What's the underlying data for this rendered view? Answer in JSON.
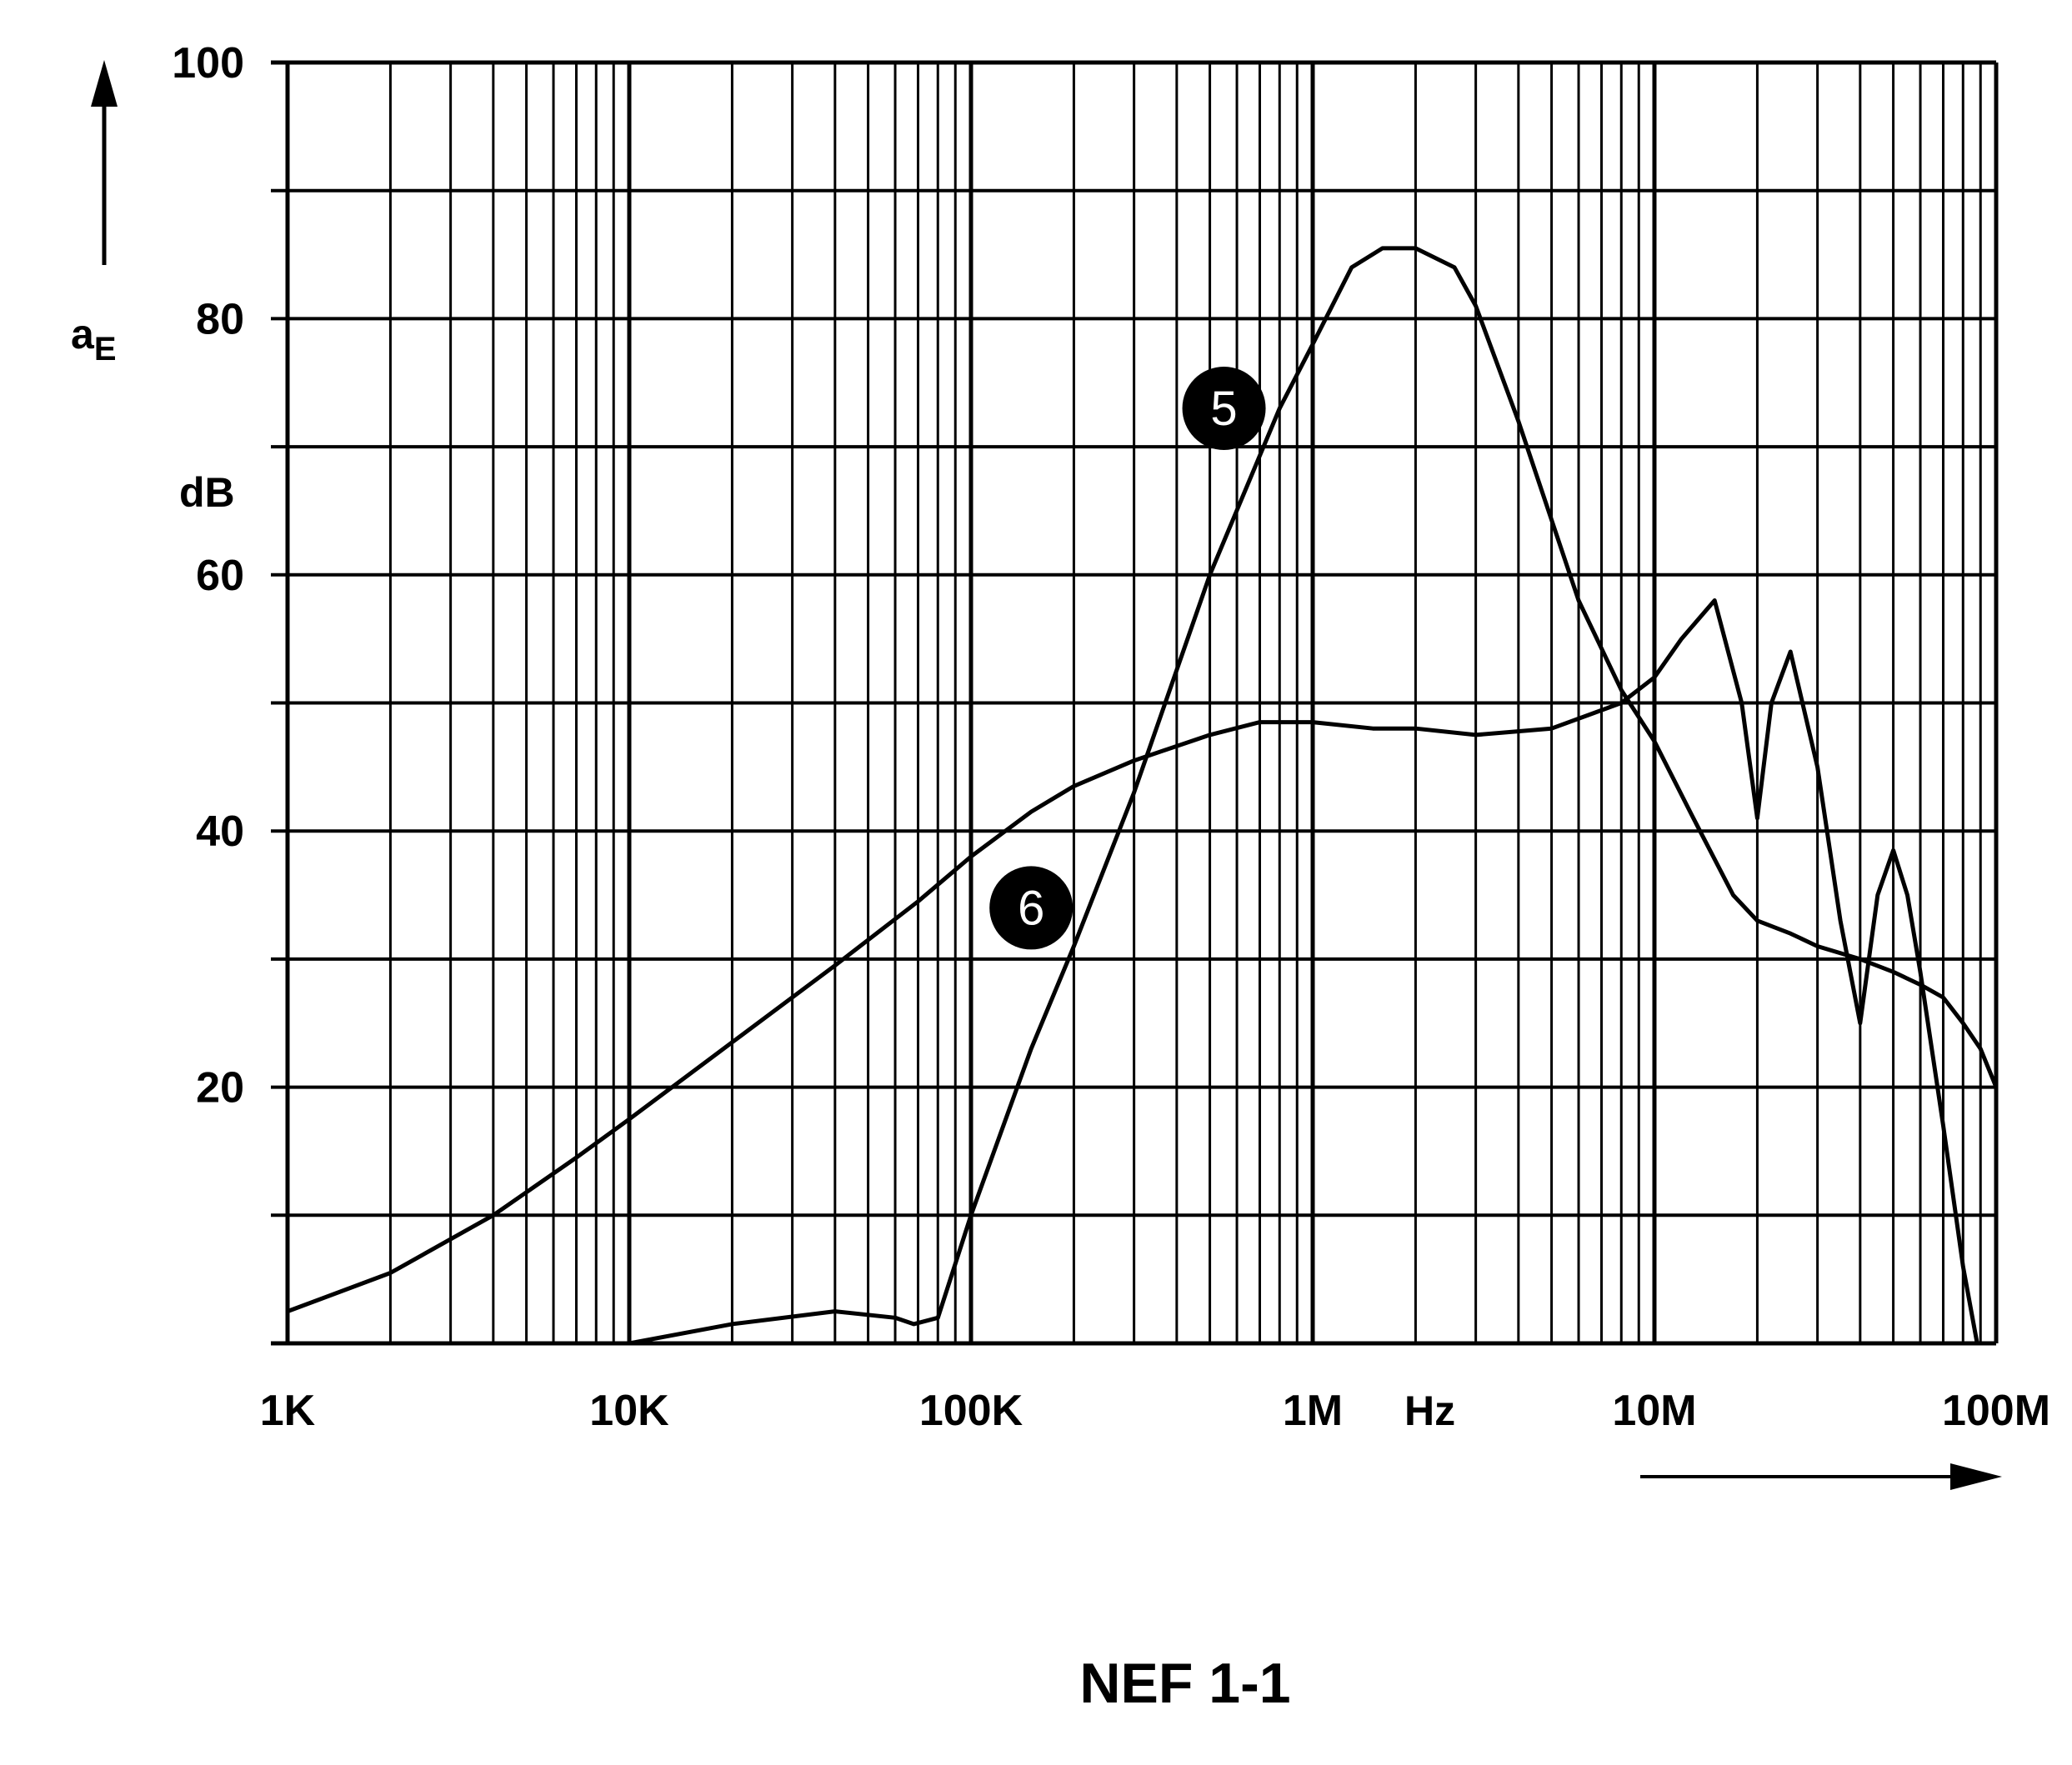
{
  "chart_data": {
    "type": "line",
    "x_scale": "log",
    "xlim": [
      1000,
      100000000
    ],
    "ylim": [
      0,
      100
    ],
    "grid": true,
    "ylabel": "aE",
    "y_unit": "dB",
    "x_unit": "Hz",
    "caption": "NEF 1-1",
    "x_tick_labels": [
      "1K",
      "10K",
      "100K",
      "1M",
      "10M",
      "100M"
    ],
    "y_tick_labels": [
      "20",
      "40",
      "60",
      "80",
      "100"
    ],
    "series": [
      {
        "marker": "5",
        "x": [
          10000,
          20000,
          40000,
          60000,
          68000,
          80000,
          100000,
          150000,
          200000,
          300000,
          500000,
          800000,
          1000000,
          1300000,
          1600000,
          2000000,
          2600000,
          3000000,
          4000000,
          6000000,
          8000000,
          10000000,
          13000000,
          17000000,
          20000000,
          25000000,
          30000000,
          40000000,
          50000000,
          60000000,
          70000000,
          80000000,
          90000000,
          100000000
        ],
        "values": [
          0,
          1.5,
          2.5,
          2,
          1.5,
          2,
          10,
          23,
          31,
          43,
          60,
          73,
          78,
          84,
          85.5,
          85.5,
          84,
          81,
          72,
          58,
          51,
          47,
          41,
          35,
          33,
          32,
          31,
          30,
          29,
          28,
          27,
          25,
          23,
          20
        ]
      },
      {
        "marker": "6",
        "x": [
          1000,
          2000,
          4000,
          7000,
          10000,
          20000,
          40000,
          70000,
          100000,
          150000,
          200000,
          300000,
          500000,
          700000,
          1000000,
          1500000,
          2000000,
          3000000,
          5000000,
          8000000,
          10000000,
          12000000,
          15000000,
          18000000,
          20000000,
          22000000,
          25000000,
          30000000,
          32000000,
          35000000,
          40000000,
          45000000,
          50000000,
          55000000,
          60000000,
          70000000,
          80000000,
          88000000
        ],
        "values": [
          2.5,
          5.5,
          10,
          14.5,
          17.5,
          23.5,
          29.5,
          34.5,
          38,
          41.5,
          43.5,
          45.5,
          47.5,
          48.5,
          48.5,
          48,
          48,
          47.5,
          48,
          50,
          52,
          55,
          58,
          50,
          41,
          50,
          54,
          45,
          40,
          33,
          25,
          35,
          38.5,
          35,
          29,
          17,
          6,
          0
        ]
      }
    ]
  }
}
